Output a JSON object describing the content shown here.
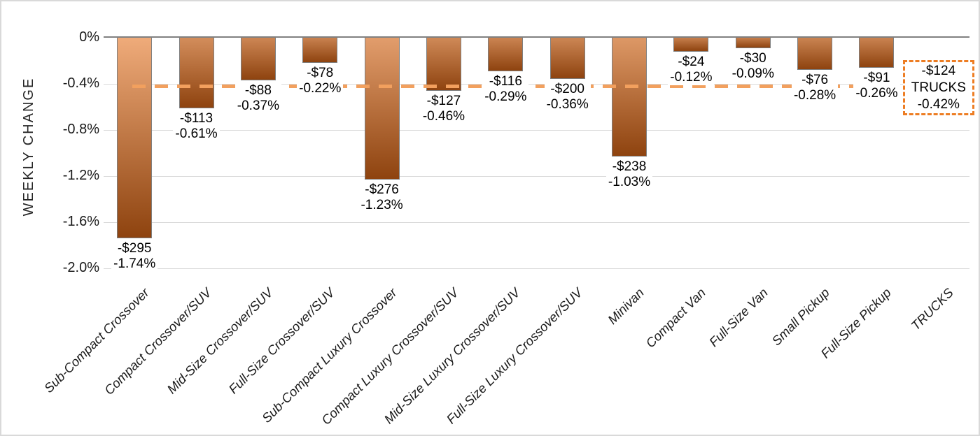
{
  "chart_data": {
    "type": "bar",
    "title": "",
    "ylabel": "WEEKLY CHANGE",
    "ylim": [
      -2.0,
      0
    ],
    "grid": true,
    "legend": "none",
    "yticks": [
      "0%",
      "-0.4%",
      "-0.8%",
      "-1.2%",
      "-1.6%",
      "-2.0%"
    ],
    "ytick_values": [
      0,
      -0.4,
      -0.8,
      -1.2,
      -1.6,
      -2.0
    ],
    "categories": [
      "Sub-Compact Crossover",
      "Compact Crossover/SUV",
      "Mid-Size Crossover/SUV",
      "Full-Size Crossover/SUV",
      "Sub-Compact Luxury Crossover",
      "Compact Luxury Crossover/SUV",
      "Mid-Size Luxury Crossover/SUV",
      "Full-Size Luxury Crossover/SUV",
      "Minivan",
      "Compact Van",
      "Full-Size Van",
      "Small Pickup",
      "Full-Size Pickup",
      "TRUCKS"
    ],
    "series": [
      {
        "name": "Weekly Change",
        "points": [
          {
            "category": "Sub-Compact Crossover",
            "dollar": -295,
            "dollar_label": "-$295",
            "pct": -1.74,
            "pct_label": "-1.74%"
          },
          {
            "category": "Compact Crossover/SUV",
            "dollar": -113,
            "dollar_label": "-$113",
            "pct": -0.61,
            "pct_label": "-0.61%"
          },
          {
            "category": "Mid-Size Crossover/SUV",
            "dollar": -88,
            "dollar_label": "-$88",
            "pct": -0.37,
            "pct_label": "-0.37%"
          },
          {
            "category": "Full-Size Crossover/SUV",
            "dollar": -78,
            "dollar_label": "-$78",
            "pct": -0.22,
            "pct_label": "-0.22%"
          },
          {
            "category": "Sub-Compact Luxury Crossover",
            "dollar": -276,
            "dollar_label": "-$276",
            "pct": -1.23,
            "pct_label": "-1.23%"
          },
          {
            "category": "Compact Luxury Crossover/SUV",
            "dollar": -127,
            "dollar_label": "-$127",
            "pct": -0.46,
            "pct_label": "-0.46%"
          },
          {
            "category": "Mid-Size Luxury Crossover/SUV",
            "dollar": -116,
            "dollar_label": "-$116",
            "pct": -0.29,
            "pct_label": "-0.29%"
          },
          {
            "category": "Full-Size Luxury Crossover/SUV",
            "dollar": -200,
            "dollar_label": "-$200",
            "pct": -0.36,
            "pct_label": "-0.36%"
          },
          {
            "category": "Minivan",
            "dollar": -238,
            "dollar_label": "-$238",
            "pct": -1.03,
            "pct_label": "-1.03%"
          },
          {
            "category": "Compact Van",
            "dollar": -24,
            "dollar_label": "-$24",
            "pct": -0.12,
            "pct_label": "-0.12%"
          },
          {
            "category": "Full-Size Van",
            "dollar": -30,
            "dollar_label": "-$30",
            "pct": -0.09,
            "pct_label": "-0.09%"
          },
          {
            "category": "Small Pickup",
            "dollar": -76,
            "dollar_label": "-$76",
            "pct": -0.28,
            "pct_label": "-0.28%"
          },
          {
            "category": "Full-Size Pickup",
            "dollar": -91,
            "dollar_label": "-$91",
            "pct": -0.26,
            "pct_label": "-0.26%"
          }
        ]
      }
    ],
    "reference": {
      "category": "TRUCKS",
      "dollar": -124,
      "dollar_label": "-$124",
      "name_label": "TRUCKS",
      "pct": -0.42,
      "pct_label": "-0.42%",
      "style": "dashed-line"
    },
    "colors": {
      "bar_light": "#EFAB7A",
      "bar_dark": "#8E430F",
      "bar_border": "#7F7F7F",
      "dash_line": "#F2A05E",
      "box_border": "#ED7D23",
      "gridline": "#D9D9D9",
      "zero_axis": "#808080",
      "text": "#1A1A1A"
    }
  }
}
